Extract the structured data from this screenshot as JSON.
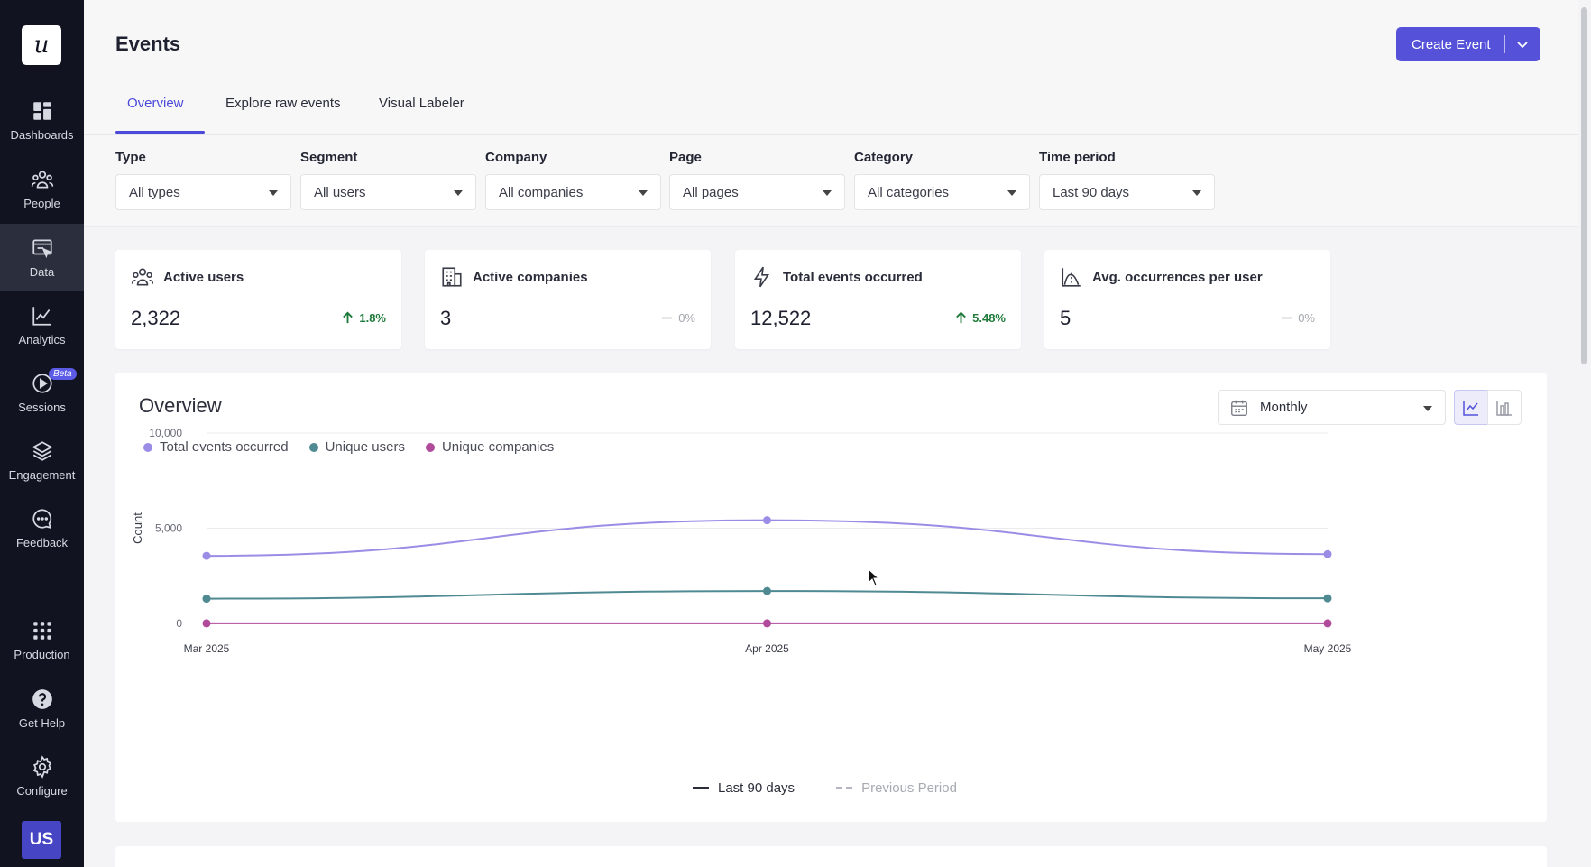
{
  "sidebar": {
    "logo": "u",
    "items": [
      {
        "label": "Dashboards",
        "icon": "dashboards-icon"
      },
      {
        "label": "People",
        "icon": "people-icon"
      },
      {
        "label": "Data",
        "icon": "data-icon",
        "active": true
      },
      {
        "label": "Analytics",
        "icon": "analytics-icon"
      },
      {
        "label": "Sessions",
        "icon": "sessions-icon",
        "badge": "Beta"
      },
      {
        "label": "Engagement",
        "icon": "engagement-icon"
      },
      {
        "label": "Feedback",
        "icon": "feedback-icon"
      },
      {
        "label": "Production",
        "icon": "production-icon"
      },
      {
        "label": "Get Help",
        "icon": "help-icon"
      },
      {
        "label": "Configure",
        "icon": "gear-icon"
      }
    ],
    "user_initials": "US"
  },
  "header": {
    "title": "Events",
    "create_button": "Create Event",
    "tabs": [
      "Overview",
      "Explore raw events",
      "Visual Labeler"
    ],
    "active_tab": "Overview"
  },
  "filters": [
    {
      "label": "Type",
      "value": "All types"
    },
    {
      "label": "Segment",
      "value": "All users"
    },
    {
      "label": "Company",
      "value": "All companies"
    },
    {
      "label": "Page",
      "value": "All pages"
    },
    {
      "label": "Category",
      "value": "All categories"
    },
    {
      "label": "Time period",
      "value": "Last 90 days"
    }
  ],
  "stats": [
    {
      "label": "Active users",
      "value": "2,322",
      "change": "1.8%",
      "trend": "up",
      "icon": "users-icon"
    },
    {
      "label": "Active companies",
      "value": "3",
      "change": "0%",
      "trend": "flat",
      "icon": "building-icon"
    },
    {
      "label": "Total events occurred",
      "value": "12,522",
      "change": "5.48%",
      "trend": "up",
      "icon": "lightning-icon"
    },
    {
      "label": "Avg. occurrences per user",
      "value": "5",
      "change": "0%",
      "trend": "flat",
      "icon": "curve-icon"
    }
  ],
  "overview": {
    "title": "Overview",
    "period": "Monthly",
    "legend_bottom": {
      "current": "Last 90 days",
      "previous": "Previous Period"
    }
  },
  "colors": {
    "accent": "#5552d9",
    "series_total": "#9b8de6",
    "series_users": "#4f8a93",
    "series_companies": "#b04a9a"
  },
  "chart_data": {
    "type": "line",
    "x": [
      "Mar 2025",
      "Apr 2025",
      "May 2025"
    ],
    "ylabel": "Count",
    "ylim": [
      0,
      10000
    ],
    "yticks": [
      "10,000",
      "5,000",
      "0"
    ],
    "series": [
      {
        "name": "Total events occurred",
        "values": [
          3550,
          5420,
          3640
        ],
        "color": "#9b8de6"
      },
      {
        "name": "Unique users",
        "values": [
          1300,
          1700,
          1320
        ],
        "color": "#4f8a93"
      },
      {
        "name": "Unique companies",
        "values": [
          3,
          3,
          3
        ],
        "color": "#b04a9a"
      }
    ],
    "grid": true,
    "legend": "top-left"
  }
}
